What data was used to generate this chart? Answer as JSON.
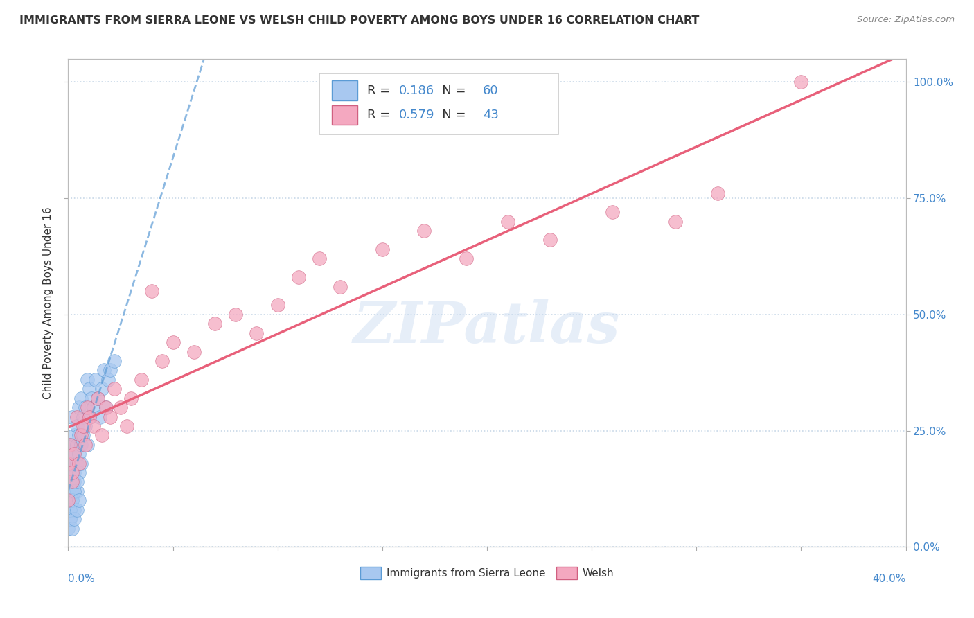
{
  "title": "IMMIGRANTS FROM SIERRA LEONE VS WELSH CHILD POVERTY AMONG BOYS UNDER 16 CORRELATION CHART",
  "source": "Source: ZipAtlas.com",
  "ylabel": "Child Poverty Among Boys Under 16",
  "ylabel_right_ticks": [
    "0.0%",
    "25.0%",
    "50.0%",
    "75.0%",
    "100.0%"
  ],
  "legend_blue_label": "Immigrants from Sierra Leone",
  "legend_pink_label": "Welsh",
  "blue_R": "0.186",
  "blue_N": "60",
  "pink_R": "0.579",
  "pink_N": "43",
  "blue_color": "#a8c8f0",
  "pink_color": "#f4a8c0",
  "blue_line_color": "#5b9bd5",
  "pink_line_color": "#e8607a",
  "watermark_text": "ZIPatlas",
  "blue_scatter_x": [
    0.0,
    0.0,
    0.001,
    0.001,
    0.001,
    0.001,
    0.001,
    0.001,
    0.001,
    0.002,
    0.002,
    0.002,
    0.002,
    0.002,
    0.002,
    0.003,
    0.003,
    0.003,
    0.003,
    0.003,
    0.004,
    0.004,
    0.004,
    0.004,
    0.005,
    0.005,
    0.005,
    0.005,
    0.006,
    0.006,
    0.006,
    0.007,
    0.007,
    0.008,
    0.008,
    0.009,
    0.009,
    0.01,
    0.01,
    0.011,
    0.012,
    0.013,
    0.014,
    0.015,
    0.016,
    0.017,
    0.018,
    0.019,
    0.02,
    0.022,
    0.0,
    0.001,
    0.001,
    0.002,
    0.002,
    0.003,
    0.003,
    0.004,
    0.004,
    0.005
  ],
  "blue_scatter_y": [
    0.12,
    0.18,
    0.08,
    0.14,
    0.1,
    0.2,
    0.16,
    0.22,
    0.06,
    0.15,
    0.18,
    0.12,
    0.22,
    0.1,
    0.28,
    0.14,
    0.2,
    0.16,
    0.24,
    0.08,
    0.18,
    0.22,
    0.26,
    0.12,
    0.2,
    0.24,
    0.16,
    0.3,
    0.22,
    0.18,
    0.32,
    0.24,
    0.28,
    0.26,
    0.3,
    0.22,
    0.36,
    0.28,
    0.34,
    0.32,
    0.3,
    0.36,
    0.32,
    0.28,
    0.34,
    0.38,
    0.3,
    0.36,
    0.38,
    0.4,
    0.04,
    0.06,
    0.08,
    0.04,
    0.1,
    0.06,
    0.12,
    0.08,
    0.14,
    0.1
  ],
  "pink_scatter_x": [
    0.0,
    0.001,
    0.002,
    0.003,
    0.004,
    0.005,
    0.006,
    0.007,
    0.008,
    0.009,
    0.01,
    0.012,
    0.014,
    0.016,
    0.018,
    0.02,
    0.022,
    0.025,
    0.028,
    0.03,
    0.035,
    0.04,
    0.045,
    0.05,
    0.06,
    0.07,
    0.08,
    0.09,
    0.1,
    0.11,
    0.12,
    0.13,
    0.15,
    0.17,
    0.19,
    0.21,
    0.23,
    0.26,
    0.29,
    0.31,
    0.0,
    0.002,
    0.35
  ],
  "pink_scatter_y": [
    0.18,
    0.22,
    0.14,
    0.2,
    0.28,
    0.18,
    0.24,
    0.26,
    0.22,
    0.3,
    0.28,
    0.26,
    0.32,
    0.24,
    0.3,
    0.28,
    0.34,
    0.3,
    0.26,
    0.32,
    0.36,
    0.55,
    0.4,
    0.44,
    0.42,
    0.48,
    0.5,
    0.46,
    0.52,
    0.58,
    0.62,
    0.56,
    0.64,
    0.68,
    0.62,
    0.7,
    0.66,
    0.72,
    0.7,
    0.76,
    0.1,
    0.16,
    1.0
  ],
  "xlim": [
    0.0,
    0.4
  ],
  "ylim": [
    0.0,
    1.05
  ],
  "ytick_positions": [
    0.0,
    0.25,
    0.5,
    0.75,
    1.0
  ],
  "background_color": "#ffffff",
  "grid_color": "#c8d8e8",
  "title_color": "#333333",
  "title_fontsize": 11.5
}
